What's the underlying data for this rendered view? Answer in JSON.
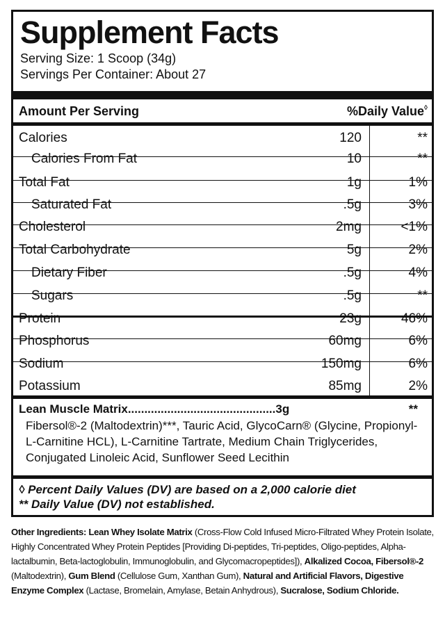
{
  "title": "Supplement Facts",
  "serving_size": "Serving Size: 1 Scoop (34g)",
  "servings_per_container": "Servings Per Container: About 27",
  "header": {
    "amount_label": "Amount Per Serving",
    "dv_label": "%Daily Value",
    "dv_symbol": "◊"
  },
  "nutrients": [
    {
      "name": "Calories",
      "amount": "120",
      "dv": "**",
      "indent": false
    },
    {
      "name": "Calories From Fat",
      "amount": "10",
      "dv": "**",
      "indent": true
    },
    {
      "name": "Total Fat",
      "amount": "1g",
      "dv": "1%",
      "indent": false
    },
    {
      "name": "Saturated Fat",
      "amount": ".5g",
      "dv": "3%",
      "indent": true
    },
    {
      "name": "Cholesterol",
      "amount": "2mg",
      "dv": "<1%",
      "indent": false
    },
    {
      "name": "Total Carbohydrate",
      "amount": "5g",
      "dv": "2%",
      "indent": false
    },
    {
      "name": "Dietary Fiber",
      "amount": ".5g",
      "dv": "4%",
      "indent": true
    },
    {
      "name": "Sugars",
      "amount": ".5g",
      "dv": "**",
      "indent": true
    },
    {
      "name": "Protein",
      "amount": "23g",
      "dv": "46%",
      "indent": false
    },
    {
      "name": "Phosphorus",
      "amount": "60mg",
      "dv": "6%",
      "indent": false
    },
    {
      "name": "Sodium",
      "amount": "150mg",
      "dv": "6%",
      "indent": false
    },
    {
      "name": "Potassium",
      "amount": "85mg",
      "dv": "2%",
      "indent": false
    }
  ],
  "matrix": {
    "heading": "Lean Muscle Matrix.............................................3g",
    "dv": "**",
    "ingredients": "Fibersol®-2 (Maltodextrin)***, Tauric Acid, GlycoCarn® (Glycine, Propionyl-L-Carnitine HCL), L-Carnitine Tartrate, Medium Chain Triglycerides, Conjugated Linoleic Acid, Sunflower Seed Lecithin"
  },
  "footnotes": [
    "◊ Percent Daily Values (DV) are based on a 2,000 calorie diet",
    "** Daily Value (DV) not established."
  ],
  "other_ingredients": [
    {
      "text": "Other Ingredients: ",
      "bold": true
    },
    {
      "text": "Lean Whey Isolate Matrix",
      "bold": true
    },
    {
      "text": " (Cross-Flow Cold Infused Micro-Filtrated Whey Protein Isolate, Highly Concentrated Whey Protein Peptides [Providing Di-peptides, Tri-peptides, Oligo-peptides, Alpha-lactalbumin, Beta-lactoglobulin, Immunoglobulin, and Glycomacropeptides]), ",
      "bold": false
    },
    {
      "text": "Alkalized Cocoa, Fibersol®-2",
      "bold": true
    },
    {
      "text": " (Maltodextrin), ",
      "bold": false
    },
    {
      "text": "Gum Blend",
      "bold": true
    },
    {
      "text": " (Cellulose Gum, Xanthan Gum), ",
      "bold": false
    },
    {
      "text": "Natural and Artificial Flavors, Digestive Enzyme Complex",
      "bold": true
    },
    {
      "text": " (Lactase, Bromelain, Amylase, Betain Anhydrous), ",
      "bold": false
    },
    {
      "text": "Sucralose, Sodium Chloride.",
      "bold": true
    }
  ]
}
